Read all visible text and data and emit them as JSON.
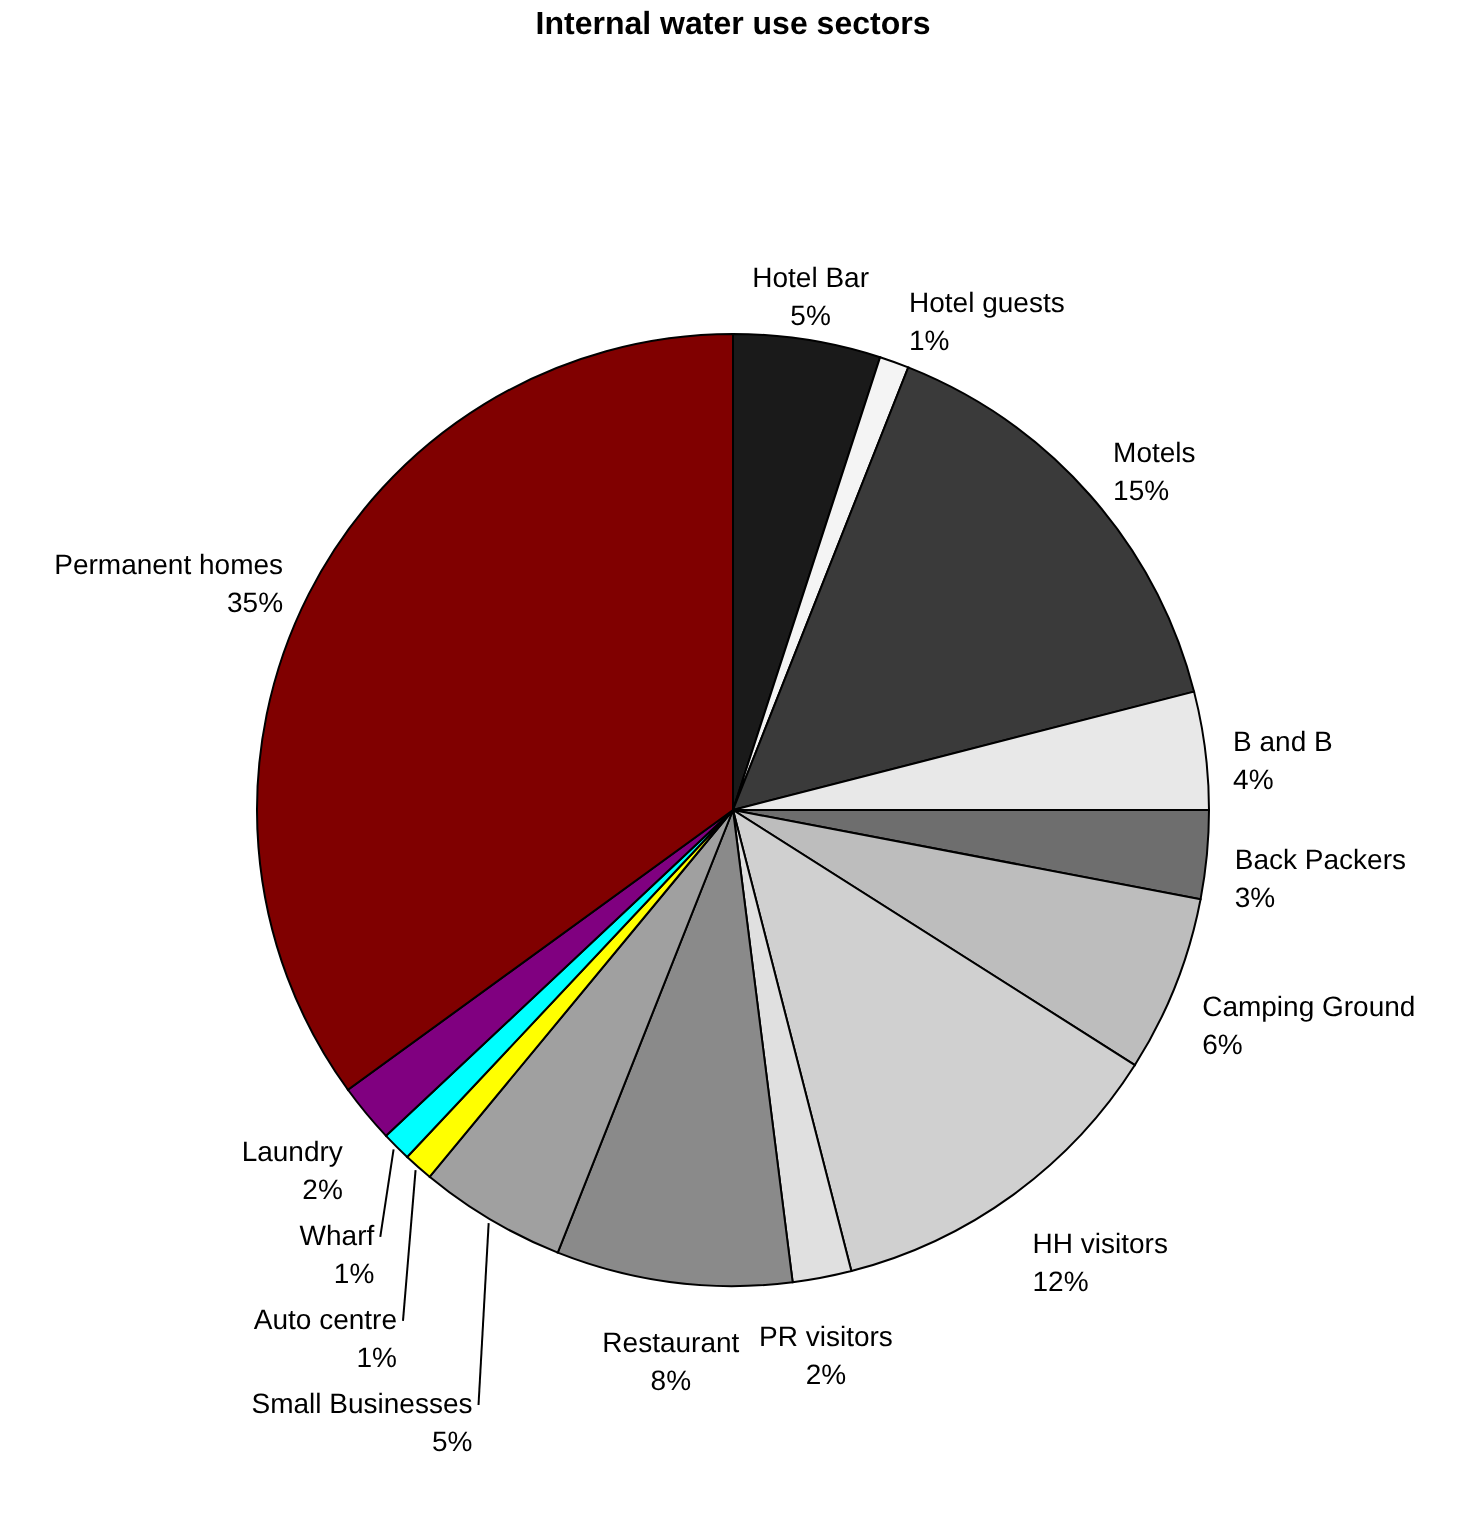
{
  "chart_data": {
    "type": "pie",
    "title": "Internal water use sectors",
    "categories": [
      "Hotel Bar",
      "Hotel guests",
      "Motels",
      "B and B",
      "Back Packers",
      "Camping Ground",
      "HH visitors",
      "PR visitors",
      "Restaurant",
      "Small Businesses",
      "Auto centre",
      "Wharf",
      "Laundry",
      "Permanent homes"
    ],
    "values": [
      5,
      1,
      15,
      4,
      3,
      6,
      12,
      2,
      8,
      5,
      1,
      1,
      2,
      35
    ],
    "value_labels": [
      "5%",
      "1%",
      "15%",
      "4%",
      "3%",
      "6%",
      "12%",
      "2%",
      "8%",
      "5%",
      "1%",
      "1%",
      "2%",
      "35%"
    ],
    "colors": [
      "#1a1a1a",
      "#f4f4f4",
      "#3a3a3a",
      "#e8e8e8",
      "#6e6e6e",
      "#bdbdbd",
      "#d0d0d0",
      "#e0e0e0",
      "#8a8a8a",
      "#a0a0a0",
      "#ffff00",
      "#00ffff",
      "#800080",
      "#800000"
    ],
    "legend": false
  }
}
